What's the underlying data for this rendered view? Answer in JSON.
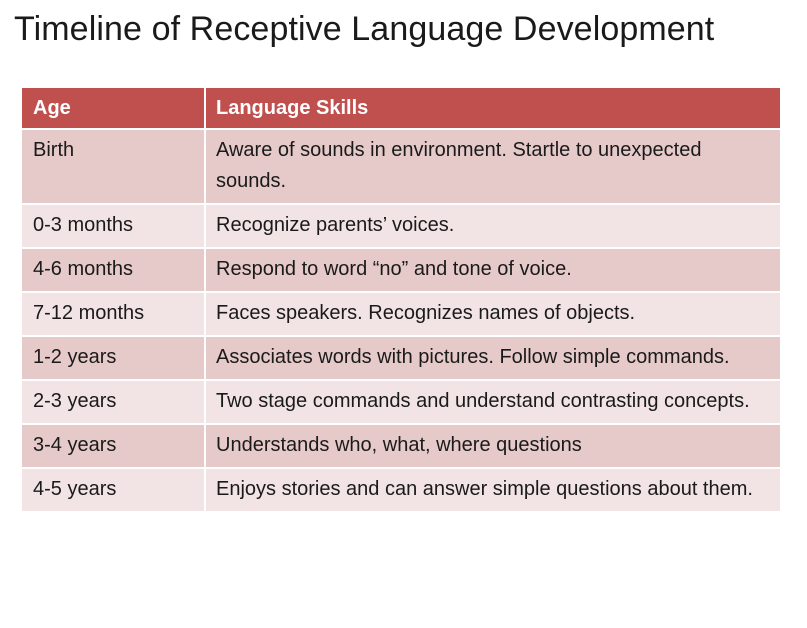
{
  "title": "Timeline of Receptive Language Development",
  "table": {
    "headers": {
      "age": "Age",
      "skills": "Language Skills"
    },
    "rows": [
      {
        "age": "Birth",
        "skills": "Aware of sounds in environment. Startle to unexpected sounds."
      },
      {
        "age": "0-3 months",
        "skills": "Recognize parents’ voices."
      },
      {
        "age": "4-6 months",
        "skills": "Respond to word “no” and tone of voice."
      },
      {
        "age": "7-12 months",
        "skills": "Faces speakers. Recognizes names of objects."
      },
      {
        "age": "1-2 years",
        "skills": "Associates words with pictures. Follow simple commands."
      },
      {
        "age": "2-3 years",
        "skills": "Two stage commands and understand contrasting concepts."
      },
      {
        "age": "3-4 years",
        "skills": "Understands who, what, where questions"
      },
      {
        "age": "4-5 years",
        "skills": "Enjoys stories and can answer simple questions about them."
      }
    ]
  },
  "colors": {
    "header_background": "#c0504d",
    "row_band_dark": "#e6c9c9",
    "row_band_light": "#f2e4e4"
  }
}
